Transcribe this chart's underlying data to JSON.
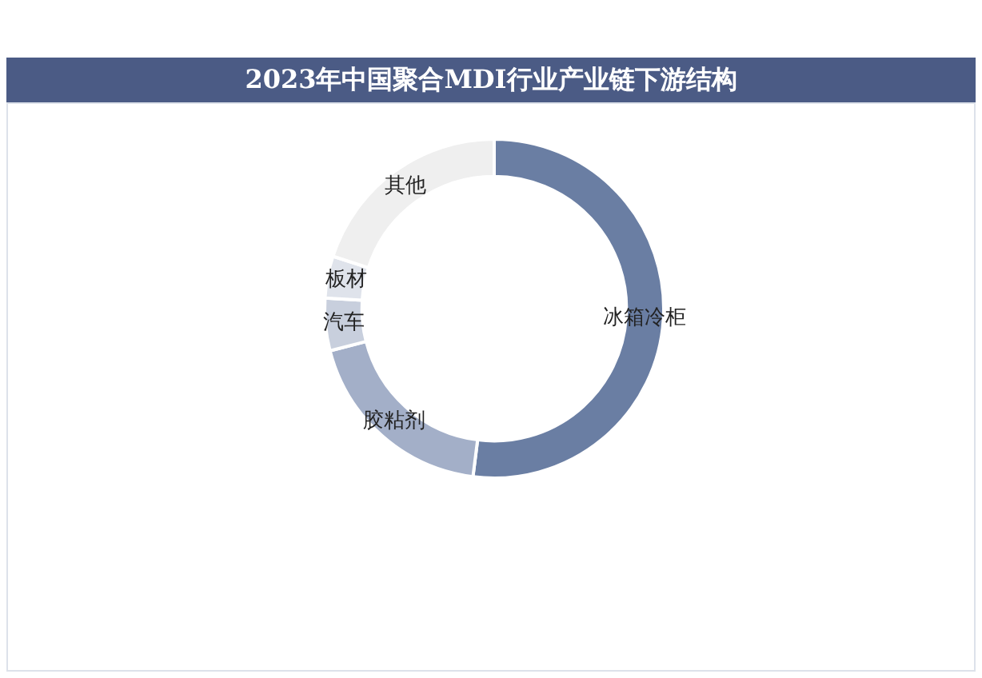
{
  "chart_data": {
    "type": "donut",
    "title": "2023年中国聚合MDI行业产业链下游结构",
    "categories": [
      "冰箱冷柜",
      "胶粘剂",
      "汽车",
      "板材",
      "其他"
    ],
    "values": [
      52,
      19,
      5,
      4,
      20
    ],
    "colors": [
      "#6a7ea3",
      "#a3afc8",
      "#c8cfdd",
      "#dfe3eb",
      "#efefef"
    ],
    "legend": false
  }
}
